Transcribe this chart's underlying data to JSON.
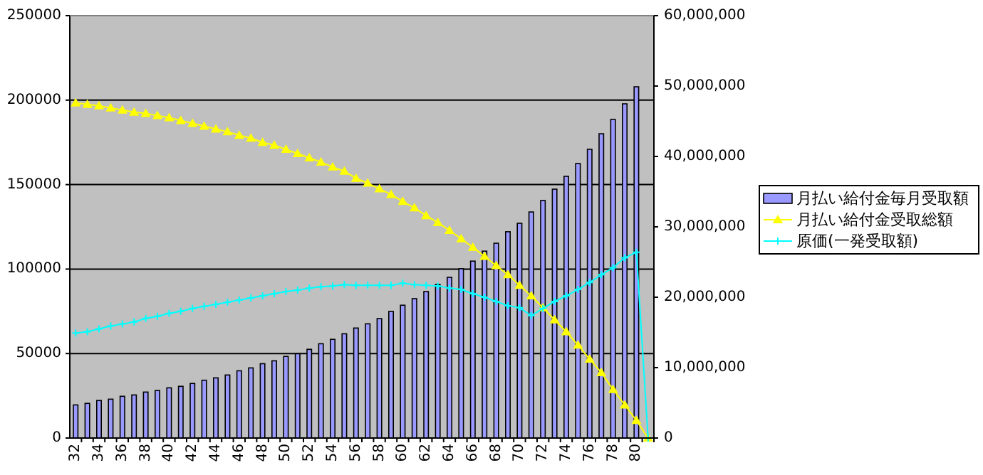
{
  "chart_data": {
    "type": "bar",
    "categories": [
      "32",
      null,
      "34",
      null,
      "36",
      null,
      "38",
      null,
      "40",
      null,
      "42",
      null,
      "44",
      null,
      "46",
      null,
      "48",
      null,
      "50",
      null,
      "52",
      null,
      "54",
      null,
      "56",
      null,
      "58",
      null,
      "60",
      null,
      "62",
      null,
      "64",
      null,
      "66",
      null,
      "68",
      null,
      "70",
      null,
      "72",
      null,
      "74",
      null,
      "76",
      null,
      "78",
      null,
      "80",
      null
    ],
    "series": [
      {
        "name": "月払い給付金毎月受取額",
        "color": "#9999ff",
        "values": [
          19600,
          20500,
          22200,
          23000,
          24700,
          25500,
          27200,
          28100,
          29700,
          30600,
          32300,
          34200,
          35600,
          37300,
          39800,
          41500,
          44000,
          45700,
          48300,
          49900,
          52500,
          55800,
          58400,
          61700,
          65100,
          67600,
          70700,
          74900,
          78600,
          82500,
          86700,
          90900,
          95100,
          100200,
          104700,
          110600,
          115300,
          122100,
          127100,
          133800,
          140600,
          147300,
          154900,
          162500,
          170900,
          180100,
          188600,
          197800,
          207900,
          0
        ]
      },
      {
        "name": "月払い給付金受取総額",
        "type": "line",
        "axis": "y2",
        "marker": "triangle",
        "color": "#ffff00",
        "values": [
          47600000,
          47400000,
          47200000,
          46900000,
          46600000,
          46300000,
          46100000,
          45800000,
          45500000,
          45100000,
          44700000,
          44300000,
          43900000,
          43500000,
          43000000,
          42600000,
          42000000,
          41600000,
          41000000,
          40400000,
          39800000,
          39200000,
          38500000,
          37900000,
          36900000,
          36200000,
          35400000,
          34600000,
          33600000,
          32700000,
          31600000,
          30600000,
          29500000,
          28300000,
          27100000,
          25800000,
          24500000,
          23200000,
          21700000,
          20200000,
          18500000,
          16800000,
          15100000,
          13200000,
          11200000,
          9300000,
          6900000,
          4700000,
          2500000,
          0
        ]
      },
      {
        "name": "原価(一発受取額)",
        "type": "line",
        "axis": "y2",
        "marker": "cross",
        "color": "#00ffff",
        "values": [
          14900000,
          15100000,
          15500000,
          15900000,
          16200000,
          16500000,
          17000000,
          17300000,
          17700000,
          18000000,
          18400000,
          18700000,
          19000000,
          19300000,
          19600000,
          19900000,
          20200000,
          20500000,
          20800000,
          21000000,
          21300000,
          21500000,
          21600000,
          21800000,
          21700000,
          21700000,
          21700000,
          21700000,
          22000000,
          21800000,
          21700000,
          21600000,
          21300000,
          21100000,
          20500000,
          20000000,
          19400000,
          18800000,
          18500000,
          17400000,
          18400000,
          19400000,
          20200000,
          21100000,
          22100000,
          23200000,
          24200000,
          25600000,
          26400000,
          0
        ]
      }
    ],
    "ylim": [
      0,
      250000
    ],
    "yticks": [
      0,
      50000,
      100000,
      150000,
      200000,
      250000
    ],
    "y2lim": [
      0,
      60000000
    ],
    "y2ticks": [
      {
        "value": 0,
        "label": "0"
      },
      {
        "value": 10000000,
        "label": "10,000,000"
      },
      {
        "value": 20000000,
        "label": "20,000,000"
      },
      {
        "value": 30000000,
        "label": "30,000,000"
      },
      {
        "value": 40000000,
        "label": "40,000,000"
      },
      {
        "value": 50000000,
        "label": "50,000,000"
      },
      {
        "value": 60000000,
        "label": "60,000,000"
      }
    ],
    "grid": "y",
    "legend": "right"
  }
}
